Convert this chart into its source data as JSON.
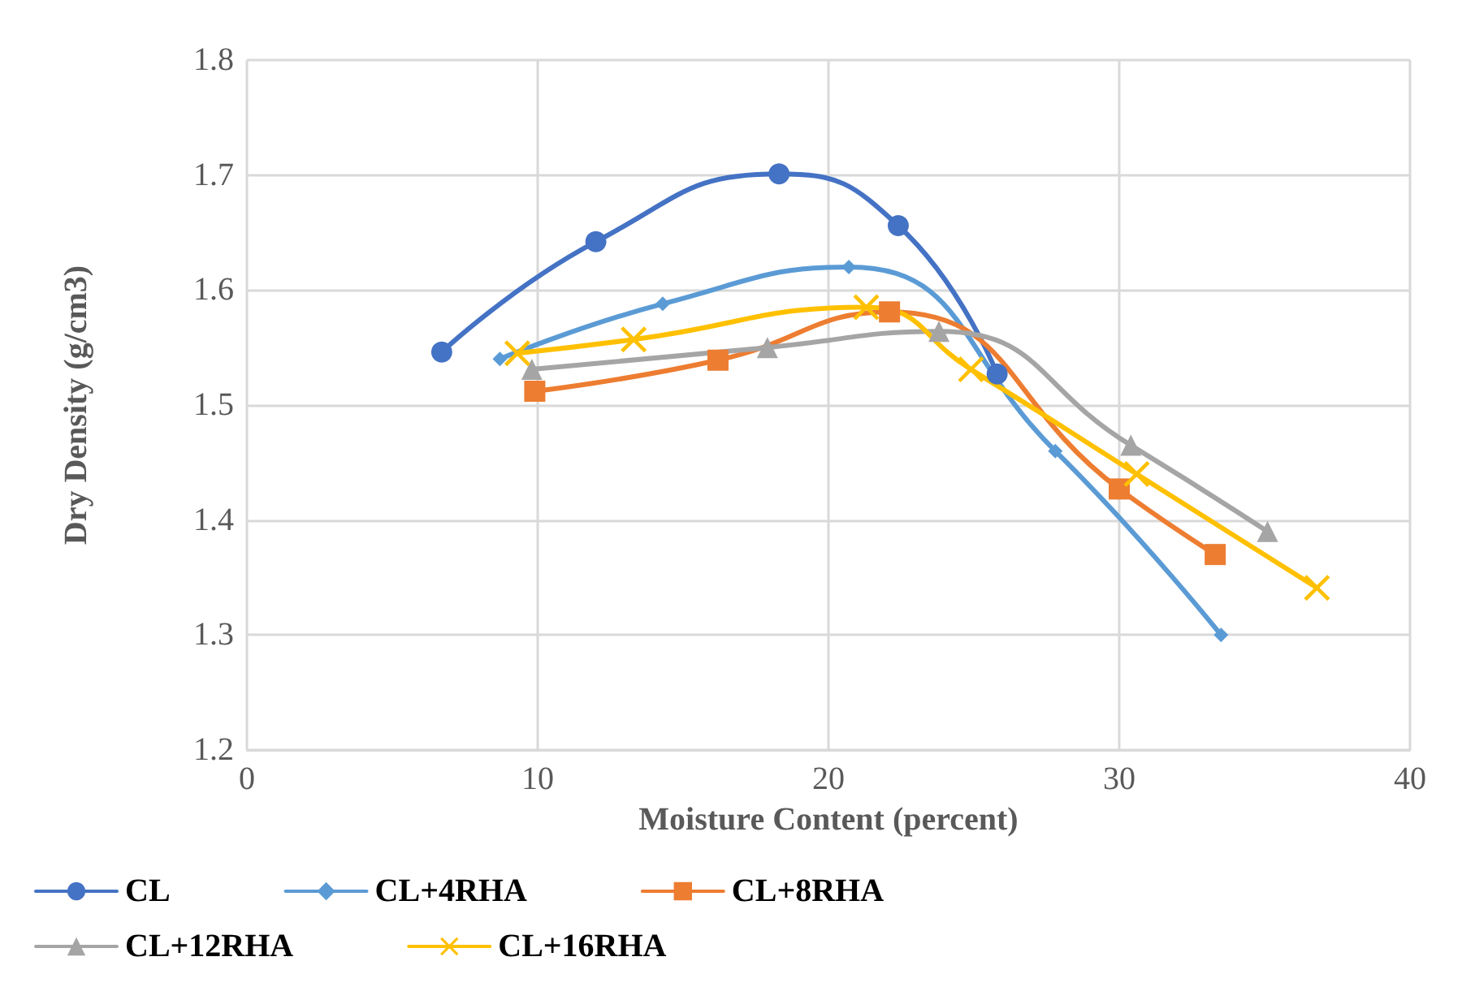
{
  "chart_data": {
    "type": "line",
    "xlabel": "Moisture Content (percent)",
    "ylabel": "Dry Density (g/cm3)",
    "xlim": [
      0,
      40
    ],
    "xticks": [
      0,
      10,
      20,
      30,
      40
    ],
    "ylim": [
      1.2,
      1.8
    ],
    "yticks": [
      1.2,
      1.3,
      1.4,
      1.5,
      1.6,
      1.7,
      1.8
    ],
    "grid": true,
    "legend": "bottom",
    "series": [
      {
        "name": "CL",
        "color": "#4472c4",
        "marker": "circle",
        "x": [
          6.7,
          12.0,
          18.3,
          22.4,
          25.8
        ],
        "values": [
          1.546,
          1.642,
          1.701,
          1.656,
          1.527
        ]
      },
      {
        "name": "CL+4RHA",
        "color": "#5b9bd5",
        "marker": "diamond",
        "x": [
          8.7,
          14.3,
          20.7,
          27.8,
          33.5
        ],
        "values": [
          1.54,
          1.588,
          1.62,
          1.46,
          1.3
        ]
      },
      {
        "name": "CL+8RHA",
        "color": "#ed7d31",
        "marker": "square",
        "x": [
          9.9,
          16.2,
          22.1,
          30.0,
          33.3
        ],
        "values": [
          1.512,
          1.539,
          1.581,
          1.427,
          1.37
        ]
      },
      {
        "name": "CL+12RHA",
        "color": "#a5a5a5",
        "marker": "triangle",
        "x": [
          9.8,
          17.9,
          23.8,
          30.4,
          35.1
        ],
        "values": [
          1.531,
          1.55,
          1.564,
          1.465,
          1.39
        ]
      },
      {
        "name": "CL+16RHA",
        "color": "#ffc000",
        "marker": "cross",
        "x": [
          9.3,
          13.3,
          21.3,
          24.9,
          30.6,
          36.8
        ],
        "values": [
          1.545,
          1.557,
          1.585,
          1.531,
          1.44,
          1.341
        ]
      }
    ]
  }
}
